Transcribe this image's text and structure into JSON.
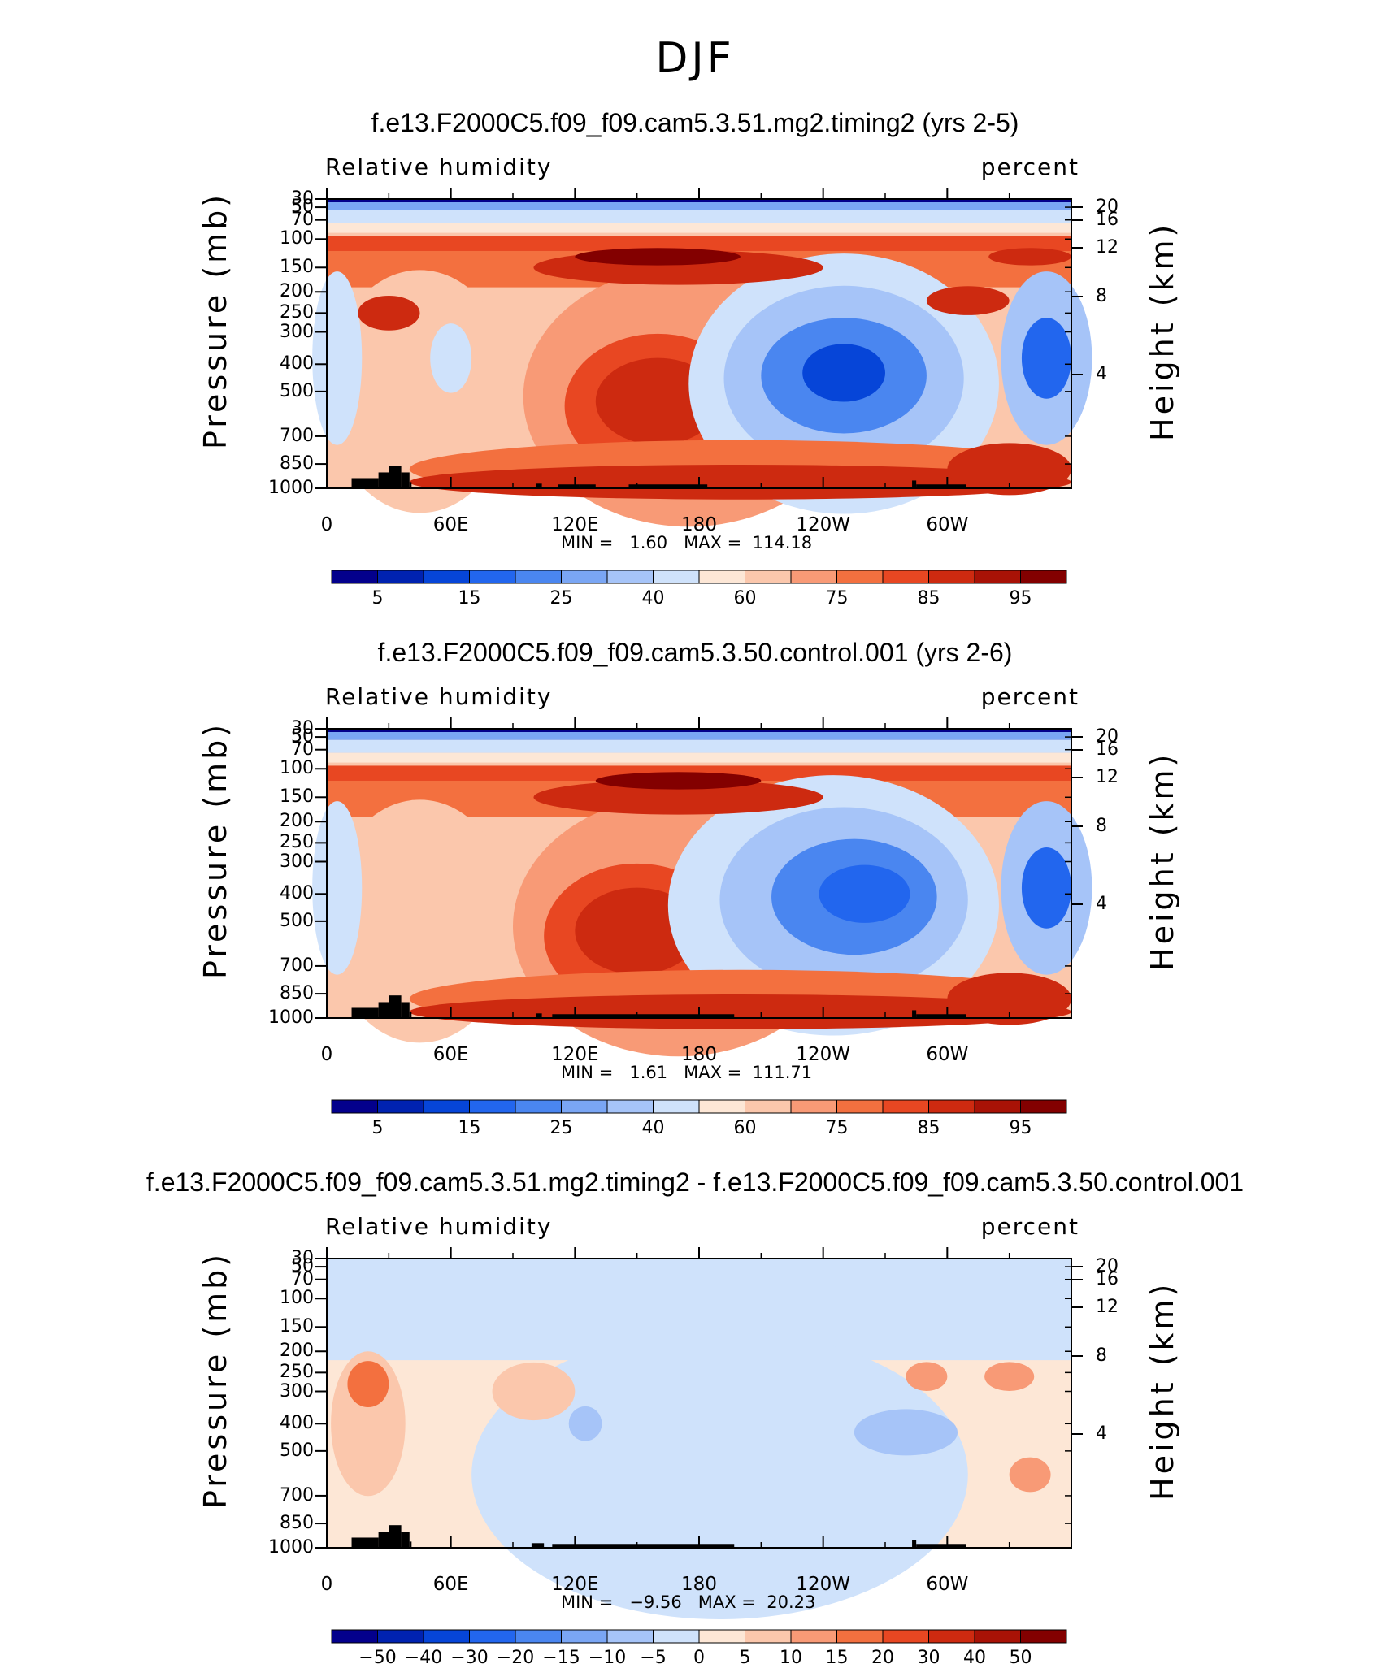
{
  "figure": {
    "season": "DJF"
  },
  "panels": [
    {
      "title": "f.e13.F2000C5.f09_f09.cam5.3.51.mg2.timing2 (yrs 2-5)",
      "variable": "Relative humidity",
      "units": "percent",
      "left_axis_label": "Pressure (mb)",
      "right_axis_label": "Height (km)",
      "min_label": "MIN =",
      "min_value": "1.60",
      "max_label": "MAX =",
      "max_value": "114.18",
      "colorbar_ticks": [
        "5",
        "15",
        "25",
        "40",
        "60",
        "75",
        "85",
        "95"
      ]
    },
    {
      "title": "f.e13.F2000C5.f09_f09.cam5.3.50.control.001 (yrs 2-6)",
      "variable": "Relative humidity",
      "units": "percent",
      "left_axis_label": "Pressure (mb)",
      "right_axis_label": "Height (km)",
      "min_label": "MIN =",
      "min_value": "1.61",
      "max_label": "MAX =",
      "max_value": "111.71",
      "colorbar_ticks": [
        "5",
        "15",
        "25",
        "40",
        "60",
        "75",
        "85",
        "95"
      ]
    },
    {
      "title": "f.e13.F2000C5.f09_f09.cam5.3.51.mg2.timing2 - f.e13.F2000C5.f09_f09.cam5.3.50.control.001",
      "variable": "Relative humidity",
      "units": "percent",
      "left_axis_label": "Pressure (mb)",
      "right_axis_label": "Height (km)",
      "min_label": "MIN =",
      "min_value": "−9.56",
      "max_label": "MAX =",
      "max_value": "20.23",
      "colorbar_ticks": [
        "−50",
        "−40",
        "−30",
        "−20",
        "−15",
        "−10",
        "−5",
        "0",
        "5",
        "10",
        "15",
        "20",
        "30",
        "40",
        "50"
      ]
    }
  ],
  "chart_data": [
    {
      "type": "heatmap",
      "title": "f.e13.F2000C5.f09_f09.cam5.3.51.mg2.timing2 (yrs 2-5)",
      "x_ticks": [
        "0",
        "60E",
        "120E",
        "180",
        "120W",
        "60W"
      ],
      "y_ticks_pressure": [
        "30",
        "50",
        "70",
        "100",
        "150",
        "200",
        "250",
        "300",
        "400",
        "500",
        "700",
        "850",
        "1000"
      ],
      "y_ticks_height": [
        "20",
        "16",
        "12",
        "8",
        "4"
      ],
      "levels": [
        5,
        10,
        15,
        20,
        25,
        30,
        40,
        50,
        60,
        65,
        75,
        80,
        85,
        90,
        95
      ],
      "colors": [
        "#03008c",
        "#0022b0",
        "#0645d8",
        "#2266ee",
        "#4a86f0",
        "#7aa6f4",
        "#a6c4f8",
        "#cfe2fb",
        "#fde7d6",
        "#fbc7ac",
        "#f89a76",
        "#f3703f",
        "#e84722",
        "#cd2a10",
        "#a81206",
        "#830000"
      ],
      "min": 1.6,
      "max": 114.18
    },
    {
      "type": "heatmap",
      "title": "f.e13.F2000C5.f09_f09.cam5.3.50.control.001 (yrs 2-6)",
      "x_ticks": [
        "0",
        "60E",
        "120E",
        "180",
        "120W",
        "60W"
      ],
      "y_ticks_pressure": [
        "30",
        "50",
        "70",
        "100",
        "150",
        "200",
        "250",
        "300",
        "400",
        "500",
        "700",
        "850",
        "1000"
      ],
      "y_ticks_height": [
        "20",
        "16",
        "12",
        "8",
        "4"
      ],
      "levels": [
        5,
        10,
        15,
        20,
        25,
        30,
        40,
        50,
        60,
        65,
        75,
        80,
        85,
        90,
        95
      ],
      "colors": [
        "#03008c",
        "#0022b0",
        "#0645d8",
        "#2266ee",
        "#4a86f0",
        "#7aa6f4",
        "#a6c4f8",
        "#cfe2fb",
        "#fde7d6",
        "#fbc7ac",
        "#f89a76",
        "#f3703f",
        "#e84722",
        "#cd2a10",
        "#a81206",
        "#830000"
      ],
      "min": 1.61,
      "max": 111.71
    },
    {
      "type": "heatmap",
      "title": "f.e13.F2000C5.f09_f09.cam5.3.51.mg2.timing2 - f.e13.F2000C5.f09_f09.cam5.3.50.control.001",
      "x_ticks": [
        "0",
        "60E",
        "120E",
        "180",
        "120W",
        "60W"
      ],
      "y_ticks_pressure": [
        "30",
        "50",
        "70",
        "100",
        "150",
        "200",
        "250",
        "300",
        "400",
        "500",
        "700",
        "850",
        "1000"
      ],
      "y_ticks_height": [
        "20",
        "16",
        "12",
        "8",
        "4"
      ],
      "levels": [
        -50,
        -40,
        -30,
        -20,
        -15,
        -10,
        -5,
        0,
        5,
        10,
        15,
        20,
        30,
        40,
        50
      ],
      "colors": [
        "#03008c",
        "#0022b0",
        "#0645d8",
        "#2266ee",
        "#4a86f0",
        "#7aa6f4",
        "#a6c4f8",
        "#cfe2fb",
        "#fde7d6",
        "#fbc7ac",
        "#f89a76",
        "#f3703f",
        "#e84722",
        "#cd2a10",
        "#a81206",
        "#830000"
      ],
      "min": -9.56,
      "max": 20.23
    }
  ]
}
